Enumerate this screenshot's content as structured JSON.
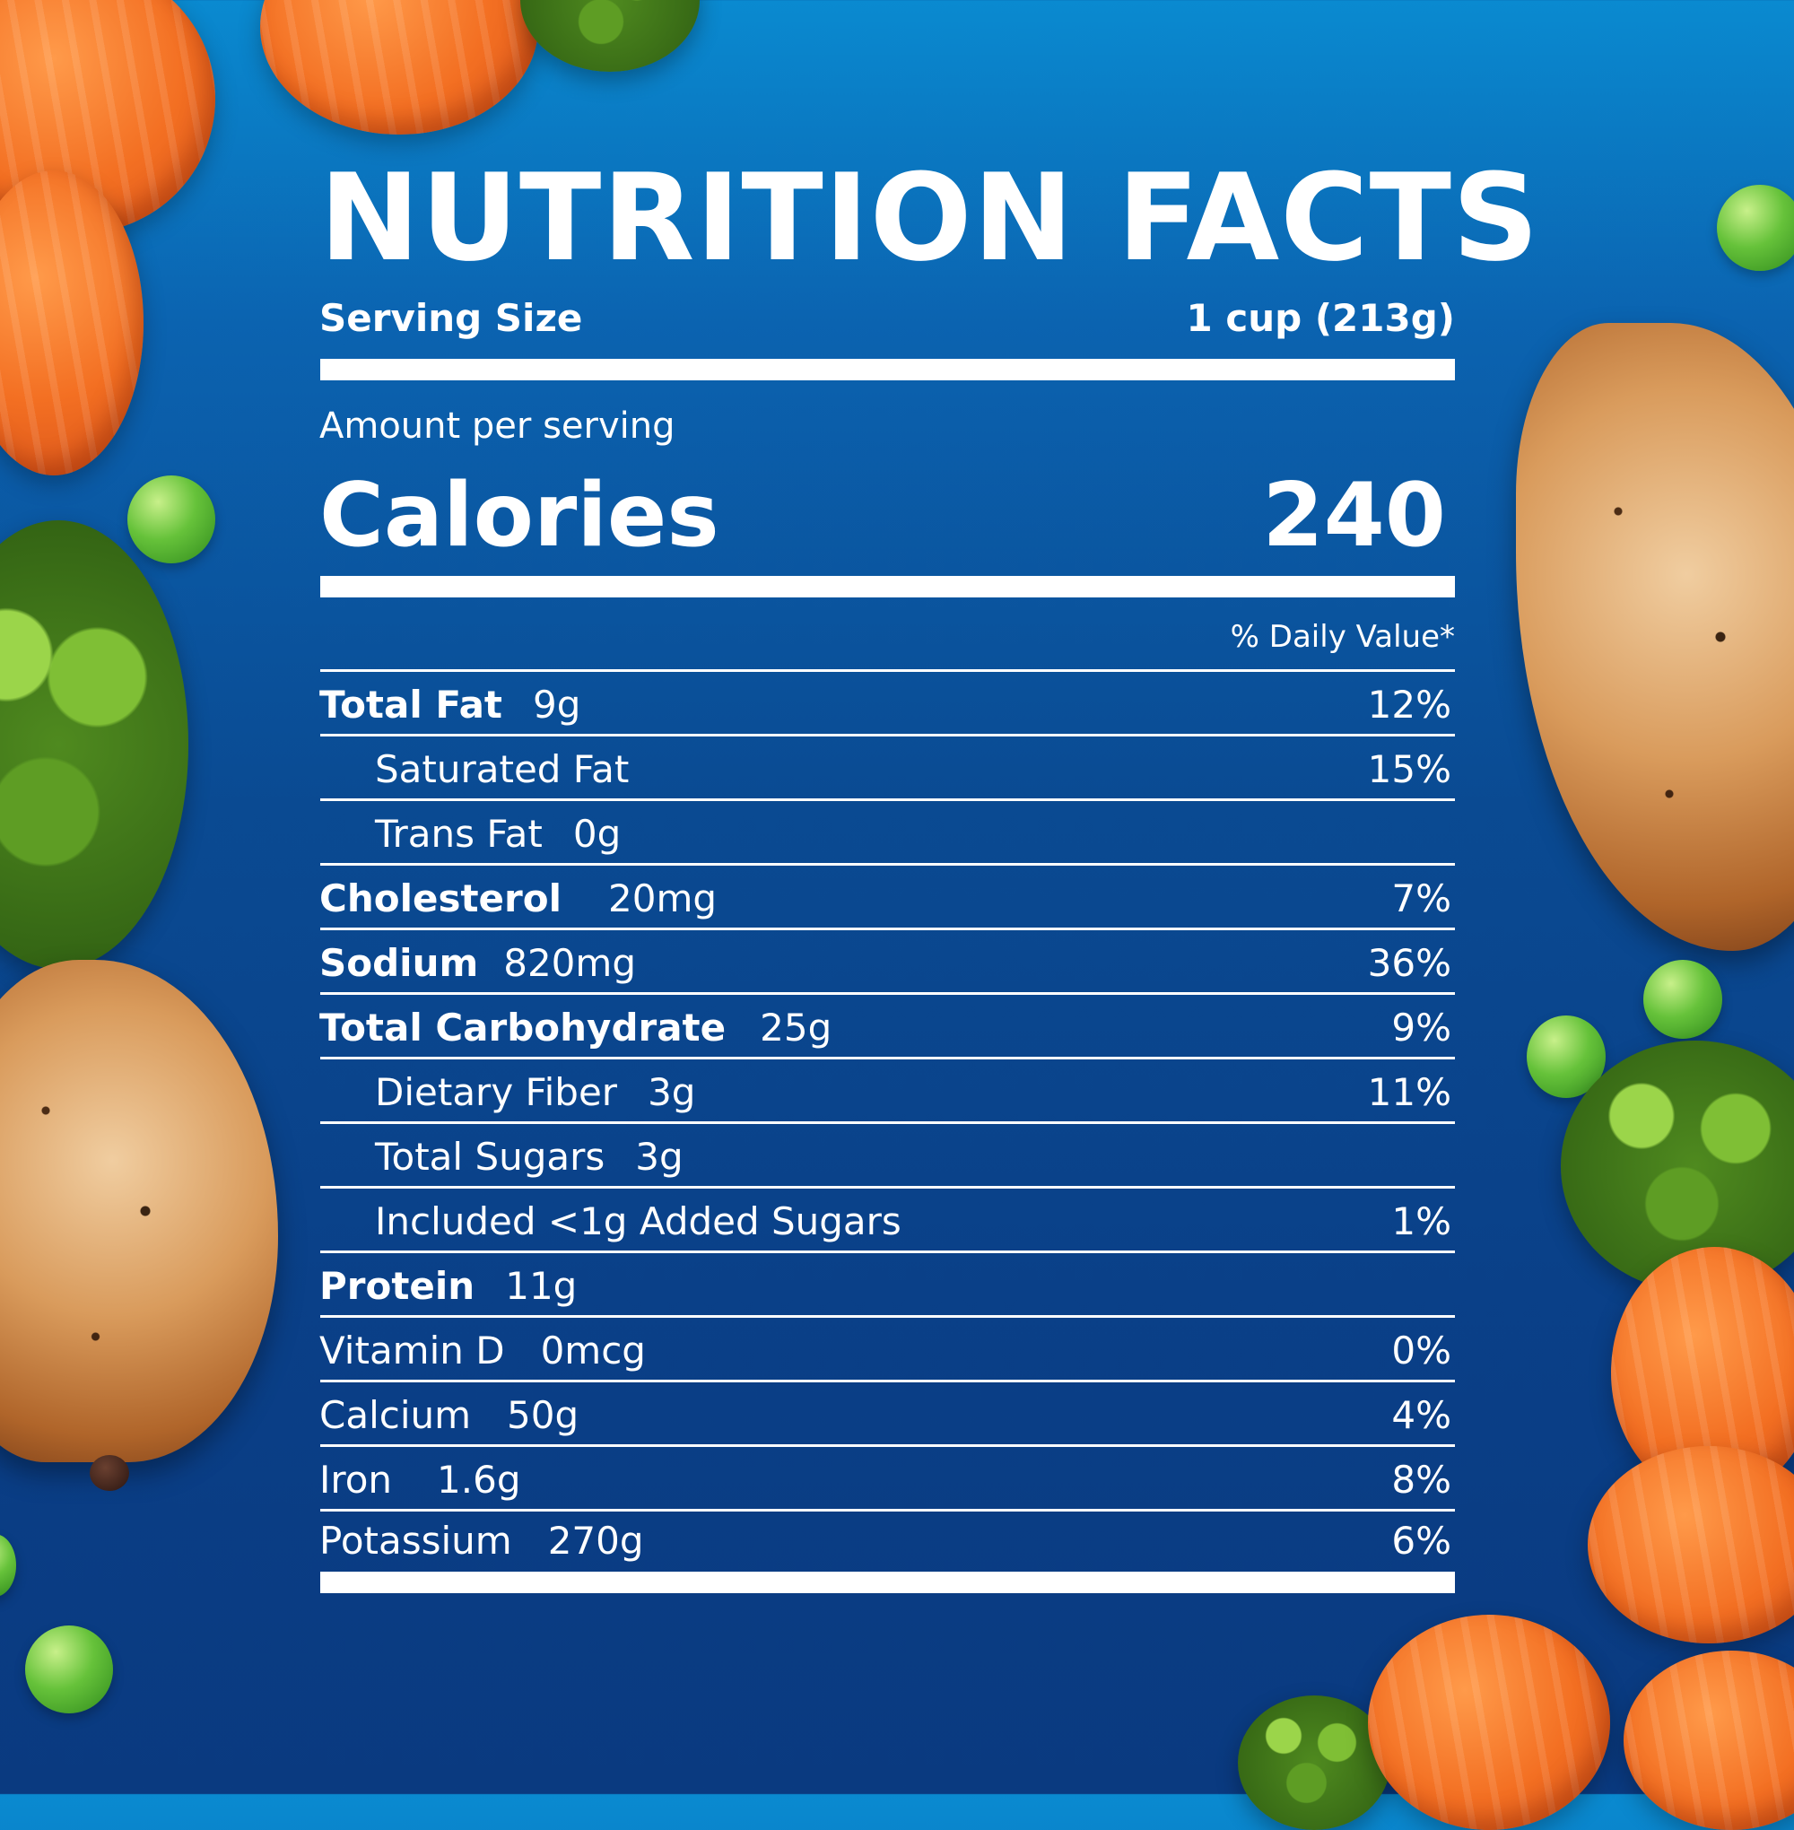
{
  "label": {
    "title": "NUTRITION FACTS",
    "serving_size_label": "Serving Size",
    "serving_size_value": "1 cup (213g)",
    "amount_per_serving": "Amount per serving",
    "calories_label": "Calories",
    "calories_value": "240",
    "daily_value_header": "% Daily Value*",
    "nutrients": [
      {
        "name": "Total Fat",
        "amount": "9g",
        "dv": "12%"
      },
      {
        "name": "Saturated Fat",
        "amount": "",
        "dv": "15%"
      },
      {
        "name": "Trans Fat",
        "amount": "0g",
        "dv": ""
      },
      {
        "name": "Cholesterol",
        "amount": "20mg",
        "dv": "7%"
      },
      {
        "name": "Sodium",
        "amount": "820mg",
        "dv": "36%"
      },
      {
        "name": "Total Carbohydrate",
        "amount": "25g",
        "dv": "9%"
      },
      {
        "name": "Dietary Fiber",
        "amount": "3g",
        "dv": "11%"
      },
      {
        "name": "Total Sugars",
        "amount": "3g",
        "dv": ""
      },
      {
        "name": "Included <1g Added Sugars",
        "amount": "",
        "dv": "1%"
      },
      {
        "name": "Protein",
        "amount": "11g",
        "dv": ""
      },
      {
        "name": "Vitamin D",
        "amount": "0mcg",
        "dv": "0%"
      },
      {
        "name": "Calcium",
        "amount": "50g",
        "dv": "4%"
      },
      {
        "name": "Iron",
        "amount": "1.6g",
        "dv": "8%"
      },
      {
        "name": "Potassium",
        "amount": "270g",
        "dv": "6%"
      }
    ]
  },
  "colors": {
    "background_top": "#0a8ad0",
    "background_bottom": "#0a3a80",
    "text": "#ffffff",
    "carrot": "#f36f22",
    "pea": "#66c23a",
    "broccoli": "#4f8a1f",
    "chicken": "#d99b5c"
  },
  "decorations": [
    "carrot-slice-image",
    "pea-image",
    "broccoli-image",
    "roasted-chicken-image"
  ]
}
